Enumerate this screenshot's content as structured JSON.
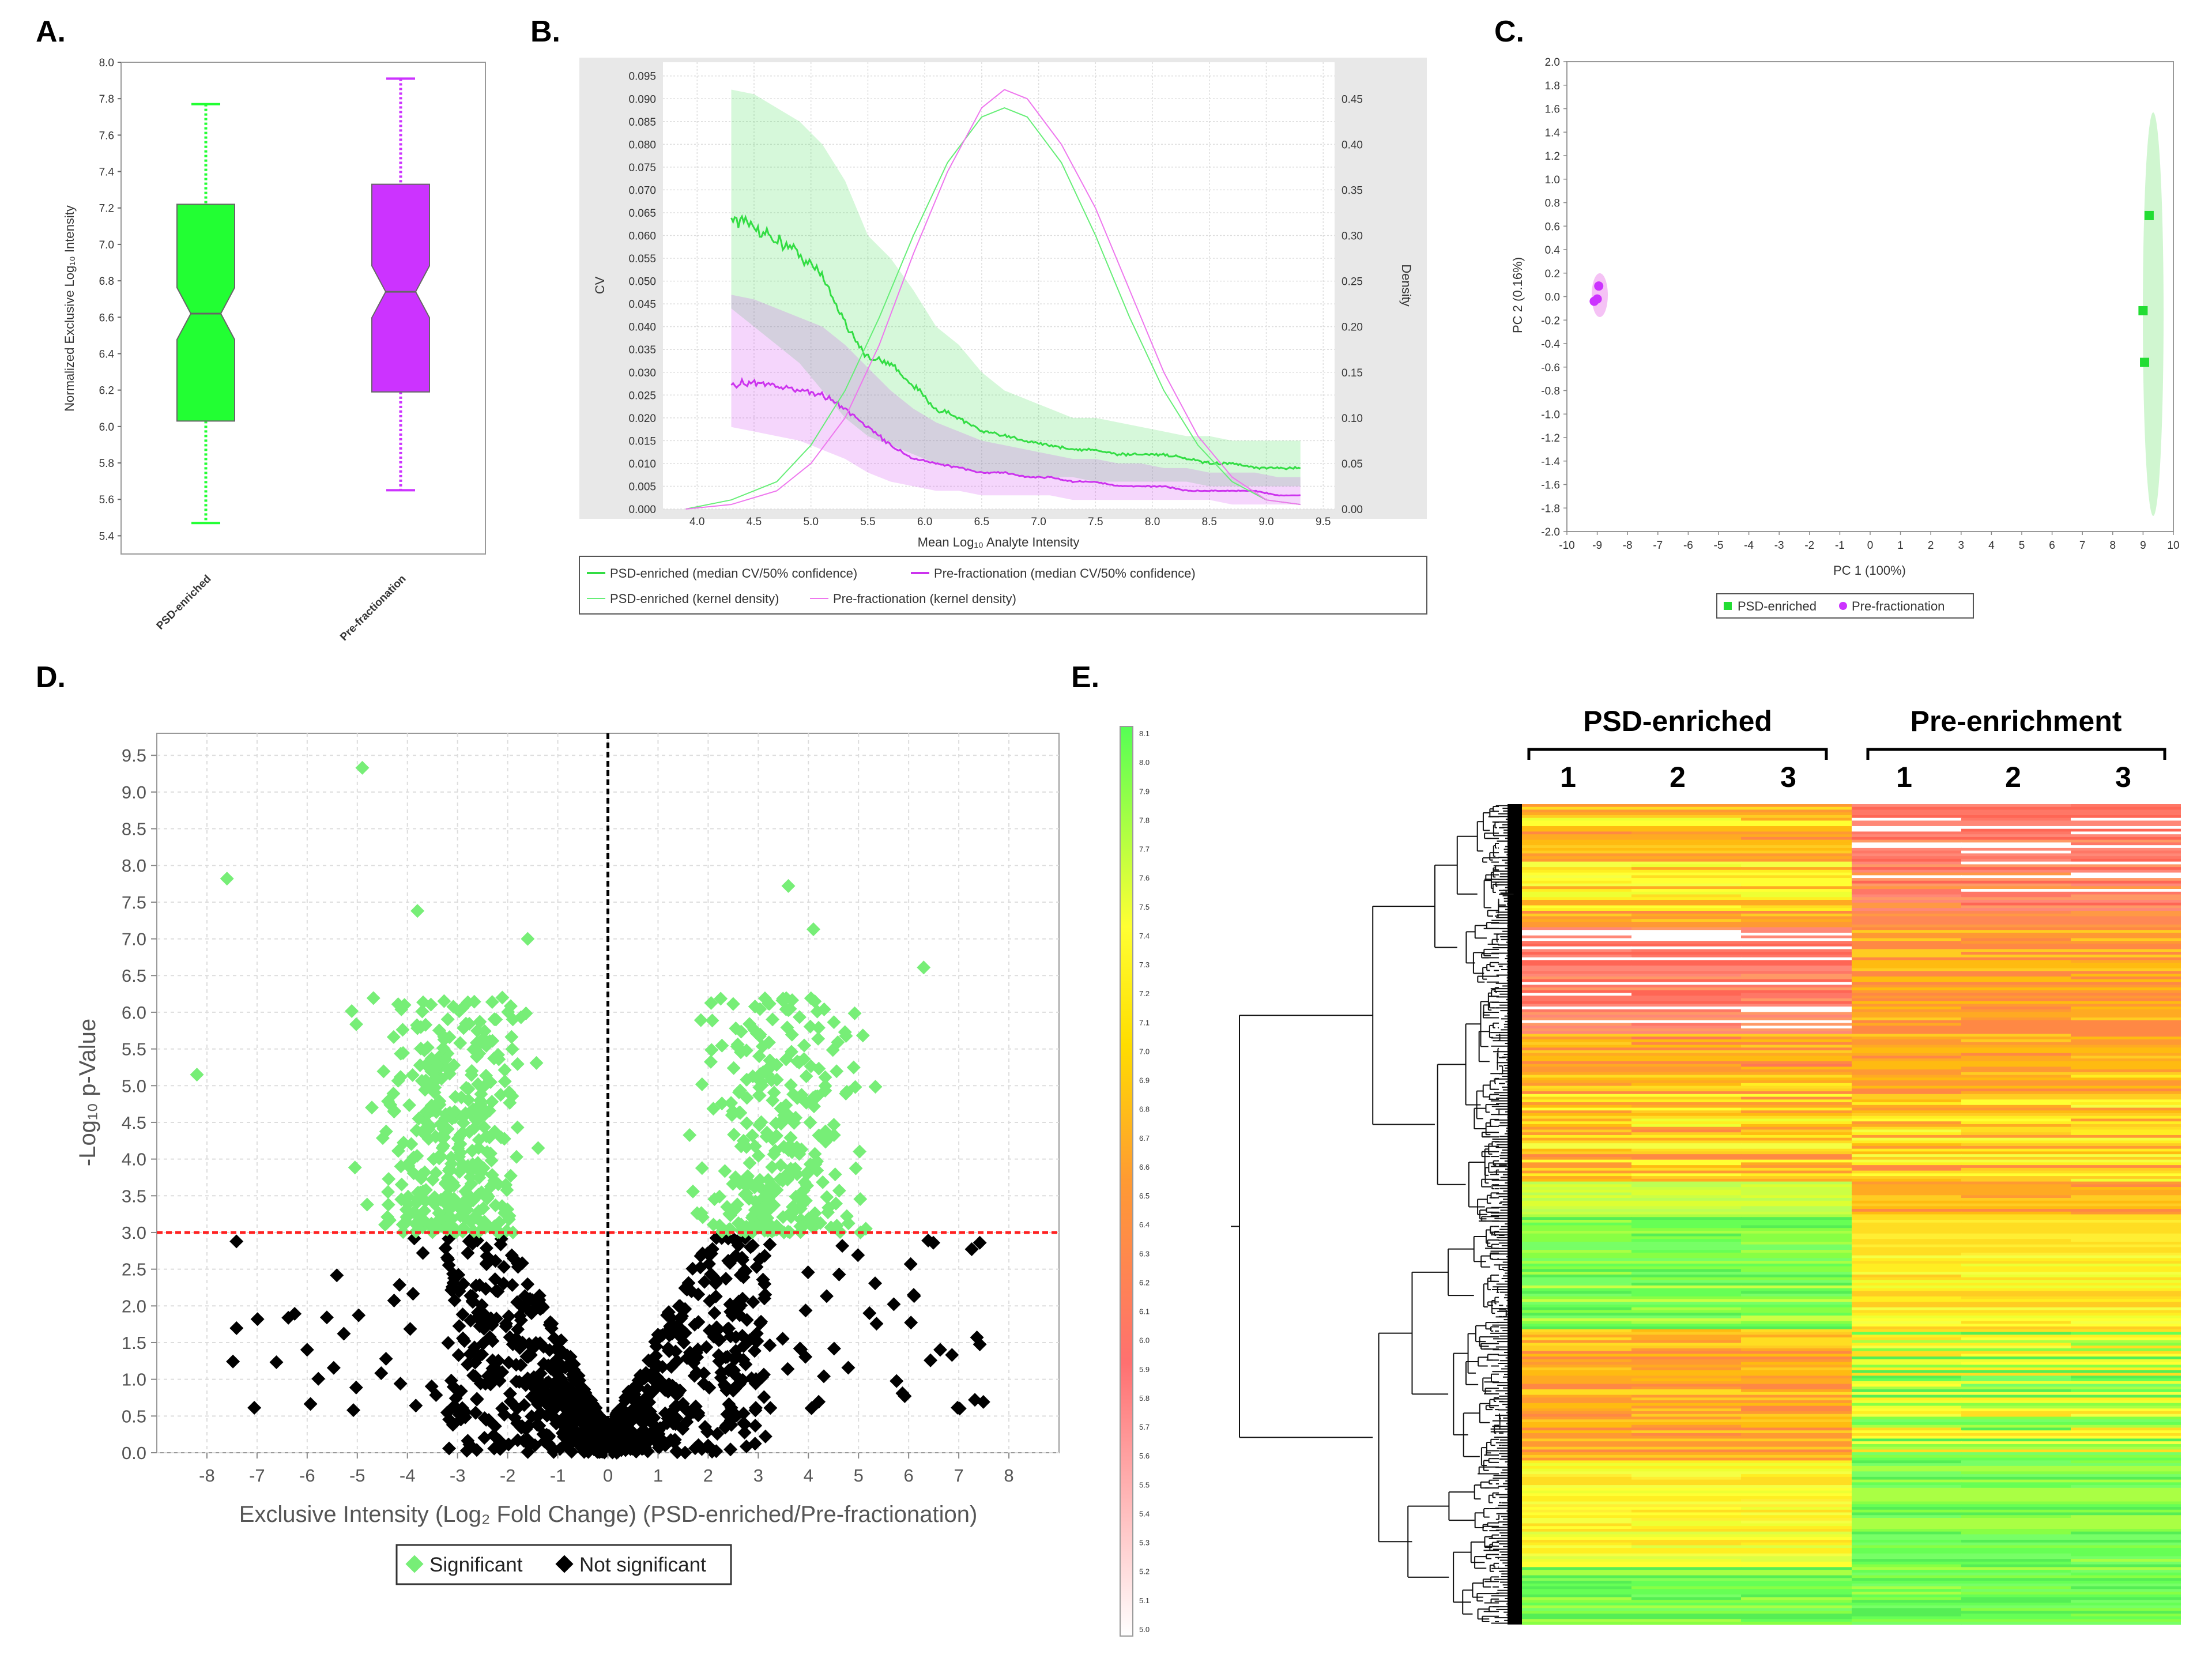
{
  "panels": {
    "a": "A.",
    "b": "B.",
    "c": "C.",
    "d": "D.",
    "e": "E."
  },
  "chart_data": [
    {
      "type": "box",
      "panel": "A",
      "ylabel": "Normalized Exclusive Log₁₀ Intensity",
      "ylim": [
        5.3,
        8.0
      ],
      "yticks": [
        "5.4",
        "5.6",
        "5.8",
        "6.0",
        "6.2",
        "6.4",
        "6.6",
        "6.8",
        "7.0",
        "7.2",
        "7.4",
        "7.6",
        "7.8",
        "8.0"
      ],
      "categories": [
        "PSD-enriched",
        "Pre-fractionation"
      ],
      "colors": [
        "#22ff33",
        "#cc33ff"
      ],
      "boxes": [
        {
          "min": 5.47,
          "q1": 6.03,
          "median": 6.62,
          "q3": 7.22,
          "max": 7.77
        },
        {
          "min": 5.65,
          "q1": 6.19,
          "median": 6.74,
          "q3": 7.33,
          "max": 7.91
        }
      ]
    },
    {
      "type": "line",
      "panel": "B",
      "xlabel": "Mean Log₁₀ Analyte Intensity",
      "ylabel": "CV",
      "y2label": "Density",
      "xlim": [
        3.7,
        9.6
      ],
      "ylim": [
        0,
        0.098
      ],
      "y2lim": [
        0,
        0.49
      ],
      "xticks": [
        "4.0",
        "4.5",
        "5.0",
        "5.5",
        "6.0",
        "6.5",
        "7.0",
        "7.5",
        "8.0",
        "8.5",
        "9.0",
        "9.5"
      ],
      "yticks": [
        "0.000",
        "0.005",
        "0.010",
        "0.015",
        "0.020",
        "0.025",
        "0.030",
        "0.035",
        "0.040",
        "0.045",
        "0.050",
        "0.055",
        "0.060",
        "0.065",
        "0.070",
        "0.075",
        "0.080",
        "0.085",
        "0.090",
        "0.095"
      ],
      "y2ticks": [
        "0.00",
        "0.05",
        "0.10",
        "0.15",
        "0.20",
        "0.25",
        "0.30",
        "0.35",
        "0.40",
        "0.45"
      ],
      "cv_x": [
        4.3,
        4.5,
        4.7,
        4.9,
        5.1,
        5.3,
        5.5,
        5.7,
        5.9,
        6.1,
        6.3,
        6.5,
        6.7,
        6.9,
        7.1,
        7.3,
        7.5,
        7.7,
        7.9,
        8.1,
        8.3,
        8.5,
        8.7,
        8.9,
        9.1,
        9.3
      ],
      "series": [
        {
          "name": "PSD-enriched (median CV/50% confidence)",
          "color": "#33dd44",
          "values": [
            0.064,
            0.062,
            0.059,
            0.056,
            0.051,
            0.041,
            0.033,
            0.032,
            0.027,
            0.022,
            0.02,
            0.017,
            0.016,
            0.015,
            0.014,
            0.013,
            0.013,
            0.012,
            0.012,
            0.012,
            0.011,
            0.01,
            0.01,
            0.009,
            0.009,
            0.009
          ],
          "band_low": [
            0.044,
            0.04,
            0.036,
            0.032,
            0.026,
            0.02,
            0.016,
            0.014,
            0.012,
            0.01,
            0.009,
            0.008,
            0.008,
            0.007,
            0.007,
            0.007,
            0.006,
            0.006,
            0.006,
            0.006,
            0.006,
            0.005,
            0.005,
            0.005,
            0.005,
            0.005
          ],
          "band_high": [
            0.092,
            0.091,
            0.088,
            0.085,
            0.08,
            0.072,
            0.06,
            0.055,
            0.048,
            0.04,
            0.036,
            0.03,
            0.026,
            0.024,
            0.022,
            0.02,
            0.02,
            0.019,
            0.018,
            0.017,
            0.016,
            0.016,
            0.015,
            0.015,
            0.015,
            0.015
          ]
        },
        {
          "name": "Pre-fractionation (median CV/50% confidence)",
          "color": "#cc33ee",
          "values": [
            0.027,
            0.028,
            0.027,
            0.026,
            0.025,
            0.022,
            0.018,
            0.014,
            0.011,
            0.01,
            0.009,
            0.008,
            0.008,
            0.007,
            0.007,
            0.006,
            0.006,
            0.005,
            0.005,
            0.005,
            0.004,
            0.004,
            0.004,
            0.004,
            0.003,
            0.003
          ],
          "band_low": [
            0.018,
            0.017,
            0.016,
            0.015,
            0.013,
            0.011,
            0.008,
            0.006,
            0.005,
            0.004,
            0.004,
            0.003,
            0.003,
            0.003,
            0.003,
            0.002,
            0.002,
            0.002,
            0.002,
            0.002,
            0.002,
            0.002,
            0.001,
            0.001,
            0.001,
            0.001
          ],
          "band_high": [
            0.047,
            0.046,
            0.044,
            0.042,
            0.04,
            0.036,
            0.031,
            0.026,
            0.022,
            0.019,
            0.017,
            0.015,
            0.014,
            0.013,
            0.012,
            0.011,
            0.011,
            0.01,
            0.01,
            0.009,
            0.009,
            0.008,
            0.008,
            0.008,
            0.007,
            0.007
          ]
        }
      ],
      "density_x": [
        3.9,
        4.3,
        4.7,
        5.0,
        5.3,
        5.6,
        5.9,
        6.2,
        6.5,
        6.7,
        6.9,
        7.2,
        7.5,
        7.8,
        8.1,
        8.4,
        8.7,
        9.0,
        9.3
      ],
      "density_series": [
        {
          "name": "PSD-enriched (kernel density)",
          "color": "#66ee77",
          "values": [
            0.0,
            0.01,
            0.03,
            0.07,
            0.13,
            0.21,
            0.3,
            0.38,
            0.43,
            0.44,
            0.43,
            0.38,
            0.3,
            0.21,
            0.13,
            0.07,
            0.03,
            0.01,
            0.005
          ]
        },
        {
          "name": "Pre-fractionation (kernel density)",
          "color": "#ee77ee",
          "values": [
            0.0,
            0.005,
            0.02,
            0.05,
            0.1,
            0.18,
            0.28,
            0.37,
            0.44,
            0.46,
            0.45,
            0.4,
            0.33,
            0.24,
            0.15,
            0.08,
            0.035,
            0.01,
            0.005
          ]
        }
      ],
      "legend": [
        "PSD-enriched (median CV/50% confidence)",
        "Pre-fractionation (median CV/50% confidence)",
        "PSD-enriched (kernel density)",
        "Pre-fractionation (kernel density)"
      ]
    },
    {
      "type": "scatter",
      "panel": "C",
      "xlabel": "PC 1 (100%)",
      "ylabel": "PC 2 (0.16%)",
      "xlim": [
        -10,
        10
      ],
      "ylim": [
        -2.0,
        2.0
      ],
      "xticks": [
        "-10",
        "-9",
        "-8",
        "-7",
        "-6",
        "-5",
        "-4",
        "-3",
        "-2",
        "-1",
        "0",
        "1",
        "2",
        "3",
        "4",
        "5",
        "6",
        "7",
        "8",
        "9",
        "10"
      ],
      "yticks": [
        "-2.0",
        "-1.8",
        "-1.6",
        "-1.4",
        "-1.2",
        "-1.0",
        "-0.8",
        "-0.6",
        "-0.4",
        "-0.2",
        "0.0",
        "0.2",
        "0.4",
        "0.6",
        "0.8",
        "1.0",
        "1.2",
        "1.4",
        "1.6",
        "1.8",
        "2.0"
      ],
      "series": [
        {
          "name": "PSD-enriched",
          "color": "#22dd33",
          "points": [
            [
              9.2,
              0.69
            ],
            [
              9.0,
              -0.12
            ],
            [
              9.05,
              -0.56
            ]
          ]
        },
        {
          "name": "Pre-fractionation",
          "color": "#cc33ff",
          "points": [
            [
              -8.95,
              0.09
            ],
            [
              -9.0,
              -0.02
            ],
            [
              -9.1,
              -0.04
            ]
          ]
        }
      ],
      "legend": [
        "PSD-enriched",
        "Pre-fractionation"
      ]
    },
    {
      "type": "scatter",
      "panel": "D",
      "xlabel": "Exclusive Intensity (Log₂ Fold Change) (PSD-enriched/Pre-fractionation)",
      "ylabel": "-Log₁₀ p-Value",
      "xlim": [
        -9,
        9
      ],
      "ylim": [
        0,
        9.8
      ],
      "xticks": [
        "-8",
        "-7",
        "-6",
        "-5",
        "-4",
        "-3",
        "-2",
        "-1",
        "0",
        "1",
        "2",
        "3",
        "4",
        "5",
        "6",
        "7",
        "8"
      ],
      "yticks": [
        "0.0",
        "0.5",
        "1.0",
        "1.5",
        "2.0",
        "2.5",
        "3.0",
        "3.5",
        "4.0",
        "4.5",
        "5.0",
        "5.5",
        "6.0",
        "6.5",
        "7.0",
        "7.5",
        "8.0",
        "8.5",
        "9.0",
        "9.5"
      ],
      "threshold": 3.0,
      "highlight_points": {
        "Significant": [
          [
            -4.9,
            9.33
          ],
          [
            -7.6,
            7.82
          ],
          [
            -8.2,
            5.15
          ],
          [
            3.6,
            7.72
          ],
          [
            4.1,
            7.13
          ],
          [
            6.3,
            6.61
          ],
          [
            -1.6,
            7.0
          ],
          [
            -3.8,
            7.38
          ]
        ]
      },
      "legend": [
        "Significant",
        "Not significant"
      ],
      "colors": {
        "sig": "#77ee77",
        "ns": "#000000",
        "threshold": "#ff2222",
        "zero": "#000000"
      }
    },
    {
      "type": "heatmap",
      "panel": "E",
      "groups": [
        {
          "label": "PSD-enriched",
          "columns": [
            "1",
            "2",
            "3"
          ]
        },
        {
          "label": "Pre-enrichment",
          "columns": [
            "1",
            "2",
            "3"
          ]
        }
      ],
      "colorbar_ticks": [
        "5.0",
        "5.1",
        "5.2",
        "5.3",
        "5.4",
        "5.5",
        "5.6",
        "5.7",
        "5.8",
        "5.9",
        "6.0",
        "6.1",
        "6.2",
        "6.3",
        "6.4",
        "6.5",
        "6.6",
        "6.7",
        "6.8",
        "6.9",
        "7.0",
        "7.1",
        "7.2",
        "7.3",
        "7.4",
        "7.5",
        "7.6",
        "7.7",
        "7.8",
        "7.9",
        "8.0",
        "8.1"
      ],
      "colorbar_range": [
        5.0,
        8.1
      ]
    }
  ]
}
